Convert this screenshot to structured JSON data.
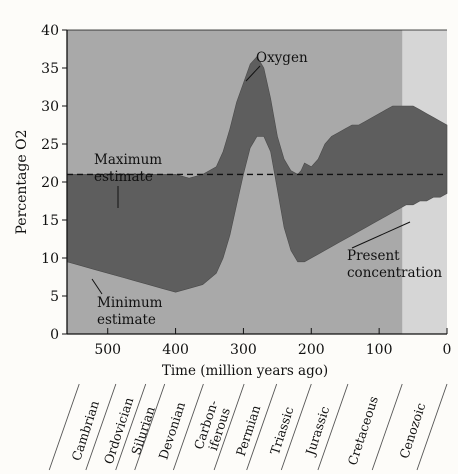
{
  "chart_data": {
    "type": "area",
    "xlabel": "Time (million years ago)",
    "ylabel": "Percentage O2",
    "x_ticks": [
      500,
      400,
      300,
      200,
      100,
      0
    ],
    "y_ticks": [
      0,
      5,
      10,
      15,
      20,
      25,
      30,
      35,
      40
    ],
    "xlim": [
      560,
      0
    ],
    "ylim": [
      0,
      40
    ],
    "x_reversed": true,
    "series": [
      {
        "name": "Maximum estimate",
        "x": [
          560,
          540,
          520,
          500,
          480,
          460,
          440,
          420,
          400,
          380,
          360,
          340,
          330,
          320,
          310,
          300,
          290,
          280,
          270,
          260,
          250,
          240,
          230,
          220,
          215,
          210,
          200,
          190,
          180,
          170,
          160,
          150,
          140,
          130,
          120,
          110,
          100,
          90,
          80,
          70,
          60,
          50,
          40,
          30,
          20,
          10,
          0
        ],
        "values": [
          21,
          21,
          21,
          21,
          21,
          21,
          21,
          21,
          21,
          20.5,
          21,
          22,
          24,
          27,
          30.5,
          33,
          35.5,
          36.5,
          35,
          31,
          26,
          23,
          21.5,
          21,
          21.5,
          22.5,
          22,
          23,
          25,
          26,
          26.5,
          27,
          27.5,
          27.5,
          28,
          28.5,
          29,
          29.5,
          30,
          30,
          30,
          30,
          29.5,
          29,
          28.5,
          28,
          27.5
        ]
      },
      {
        "name": "Minimum estimate",
        "x": [
          560,
          540,
          520,
          500,
          480,
          460,
          440,
          420,
          400,
          380,
          360,
          340,
          330,
          320,
          310,
          300,
          290,
          280,
          270,
          260,
          250,
          240,
          230,
          220,
          210,
          200,
          190,
          180,
          170,
          160,
          150,
          140,
          130,
          120,
          110,
          100,
          90,
          80,
          70,
          60,
          50,
          40,
          30,
          20,
          10,
          0
        ],
        "values": [
          9.5,
          9,
          8.5,
          8,
          7.5,
          7,
          6.5,
          6,
          5.5,
          6,
          6.5,
          8,
          10,
          13,
          17,
          21,
          24.5,
          26,
          26,
          24,
          19,
          14,
          11,
          9.5,
          9.5,
          10,
          10.5,
          11,
          11.5,
          12,
          12.5,
          13,
          13.5,
          14,
          14.5,
          15,
          15.5,
          16,
          16.5,
          17,
          17,
          17.5,
          17.5,
          18,
          18,
          18.5
        ]
      },
      {
        "name": "Present concentration",
        "x": [
          560,
          0
        ],
        "values": [
          21,
          21
        ]
      }
    ],
    "annotations": {
      "oxygen": "Oxygen",
      "maximum": [
        "Maximum",
        "estimate"
      ],
      "minimum": [
        "Minimum",
        "estimate"
      ],
      "present": [
        "Present",
        "concentration"
      ]
    },
    "periods": [
      {
        "name": "Cambrian",
        "start": 542,
        "end": 488
      },
      {
        "name": "Ordovician",
        "start": 488,
        "end": 444
      },
      {
        "name": "Silurian",
        "start": 444,
        "end": 416
      },
      {
        "name": "Devonian",
        "start": 416,
        "end": 359
      },
      {
        "name": "Carbon-iferous",
        "start": 359,
        "end": 299
      },
      {
        "name": "Permian",
        "start": 299,
        "end": 251
      },
      {
        "name": "Triassic",
        "start": 251,
        "end": 200
      },
      {
        "name": "Jurassic",
        "start": 200,
        "end": 146
      },
      {
        "name": "Cretaceous",
        "start": 146,
        "end": 66
      },
      {
        "name": "Cenozoic",
        "start": 66,
        "end": 0
      }
    ],
    "shaded_region_x": [
      66,
      0
    ],
    "colors": {
      "band": "#5e5e5e",
      "plot_bg": "#a9a9a9",
      "cenozoic_bg": "#d6d6d6",
      "axis": "#111111"
    }
  }
}
